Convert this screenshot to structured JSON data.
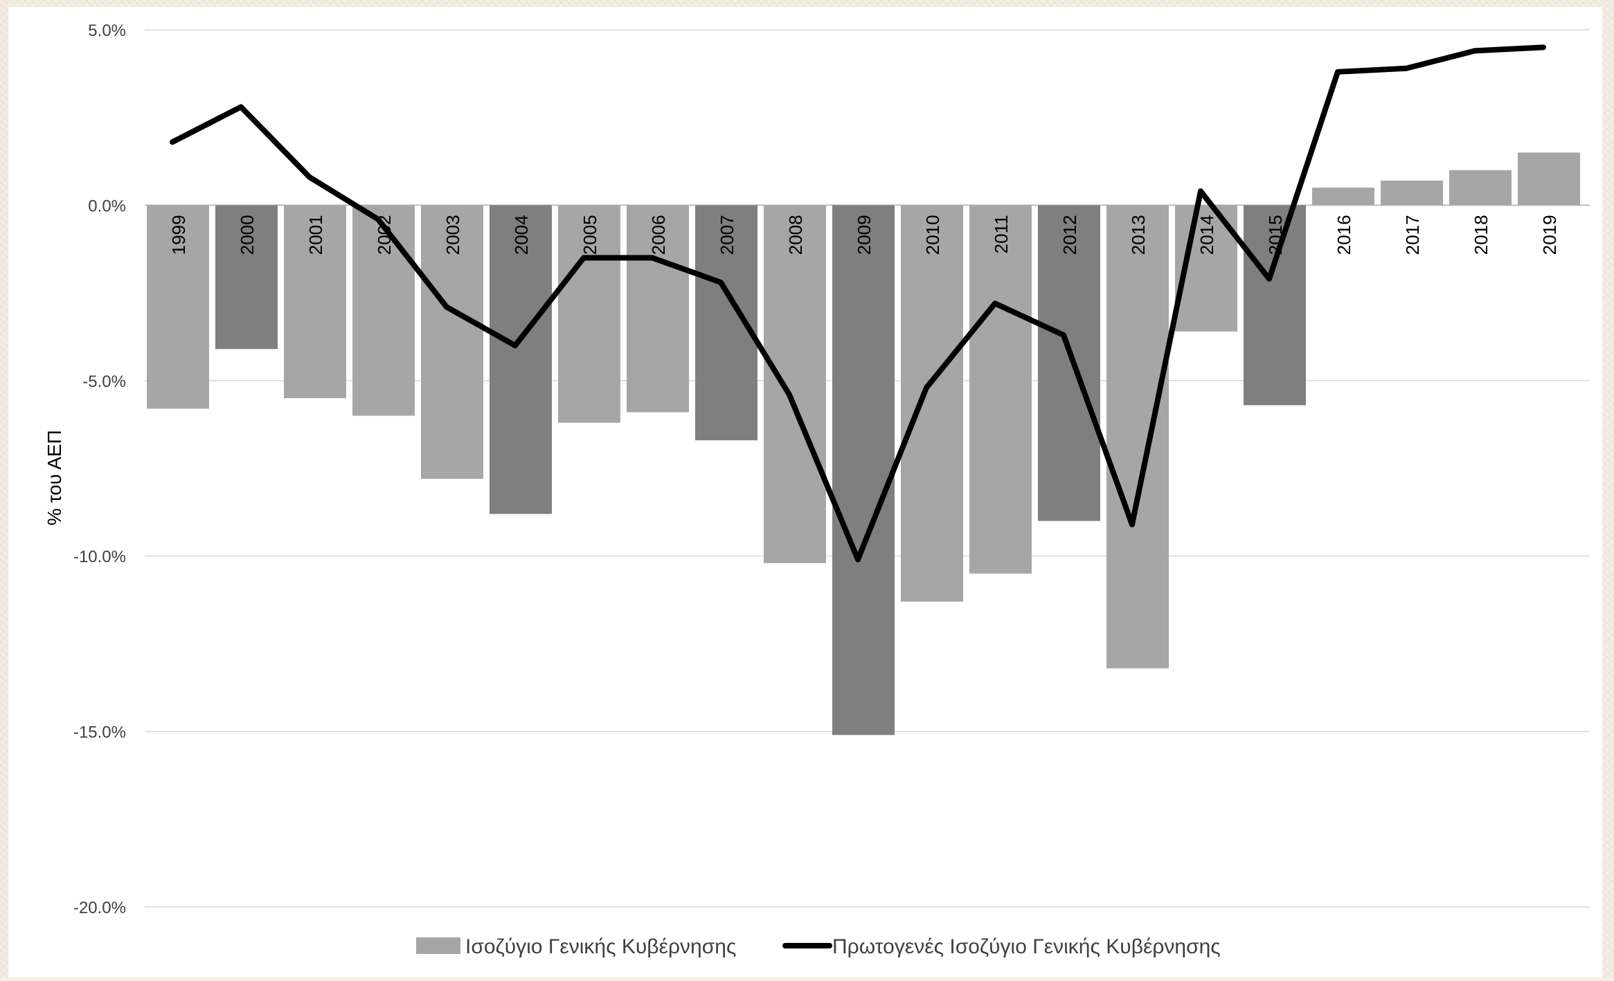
{
  "chart_data": {
    "type": "bar",
    "title": "",
    "xlabel": "",
    "ylabel": "% του ΑΕΠ",
    "ylim": [
      -20,
      5
    ],
    "yticks": [
      5,
      0,
      -5,
      -10,
      -15,
      -20
    ],
    "ytick_labels": [
      "5.0%",
      "0.0%",
      "-5.0%",
      "-10.0%",
      "-15.0%",
      "-20.0%"
    ],
    "grid": true,
    "legend_position": "bottom",
    "categories": [
      "1999",
      "2000",
      "2001",
      "2002",
      "2003",
      "2004",
      "2005",
      "2006",
      "2007",
      "2008",
      "2009",
      "2010",
      "2011",
      "2012",
      "2013",
      "2014",
      "2015",
      "2016",
      "2017",
      "2018",
      "2019"
    ],
    "series": [
      {
        "name": "Ισοζύγιο Γενικής Κυβέρνησης",
        "kind": "bar",
        "color": "#a6a6a6",
        "highlight_color": "#7f7f7f",
        "highlighted": [
          "2000",
          "2004",
          "2007",
          "2009",
          "2012",
          "2015"
        ],
        "values": [
          -5.8,
          -4.1,
          -5.5,
          -6.0,
          -7.8,
          -8.8,
          -6.2,
          -5.9,
          -6.7,
          -10.2,
          -15.1,
          -11.3,
          -10.5,
          -9.0,
          -13.2,
          -3.6,
          -5.7,
          0.5,
          0.7,
          1.0,
          1.5
        ]
      },
      {
        "name": "Πρωτογενές Ισοζύγιο Γενικής Κυβέρνησης",
        "kind": "line",
        "color": "#000000",
        "values": [
          1.8,
          2.8,
          0.8,
          -0.4,
          -2.9,
          -4.0,
          -1.5,
          -1.5,
          -2.2,
          -5.4,
          -10.1,
          -5.2,
          -2.8,
          -3.7,
          -9.1,
          0.4,
          -2.1,
          3.8,
          3.9,
          4.4,
          4.5
        ]
      }
    ]
  }
}
